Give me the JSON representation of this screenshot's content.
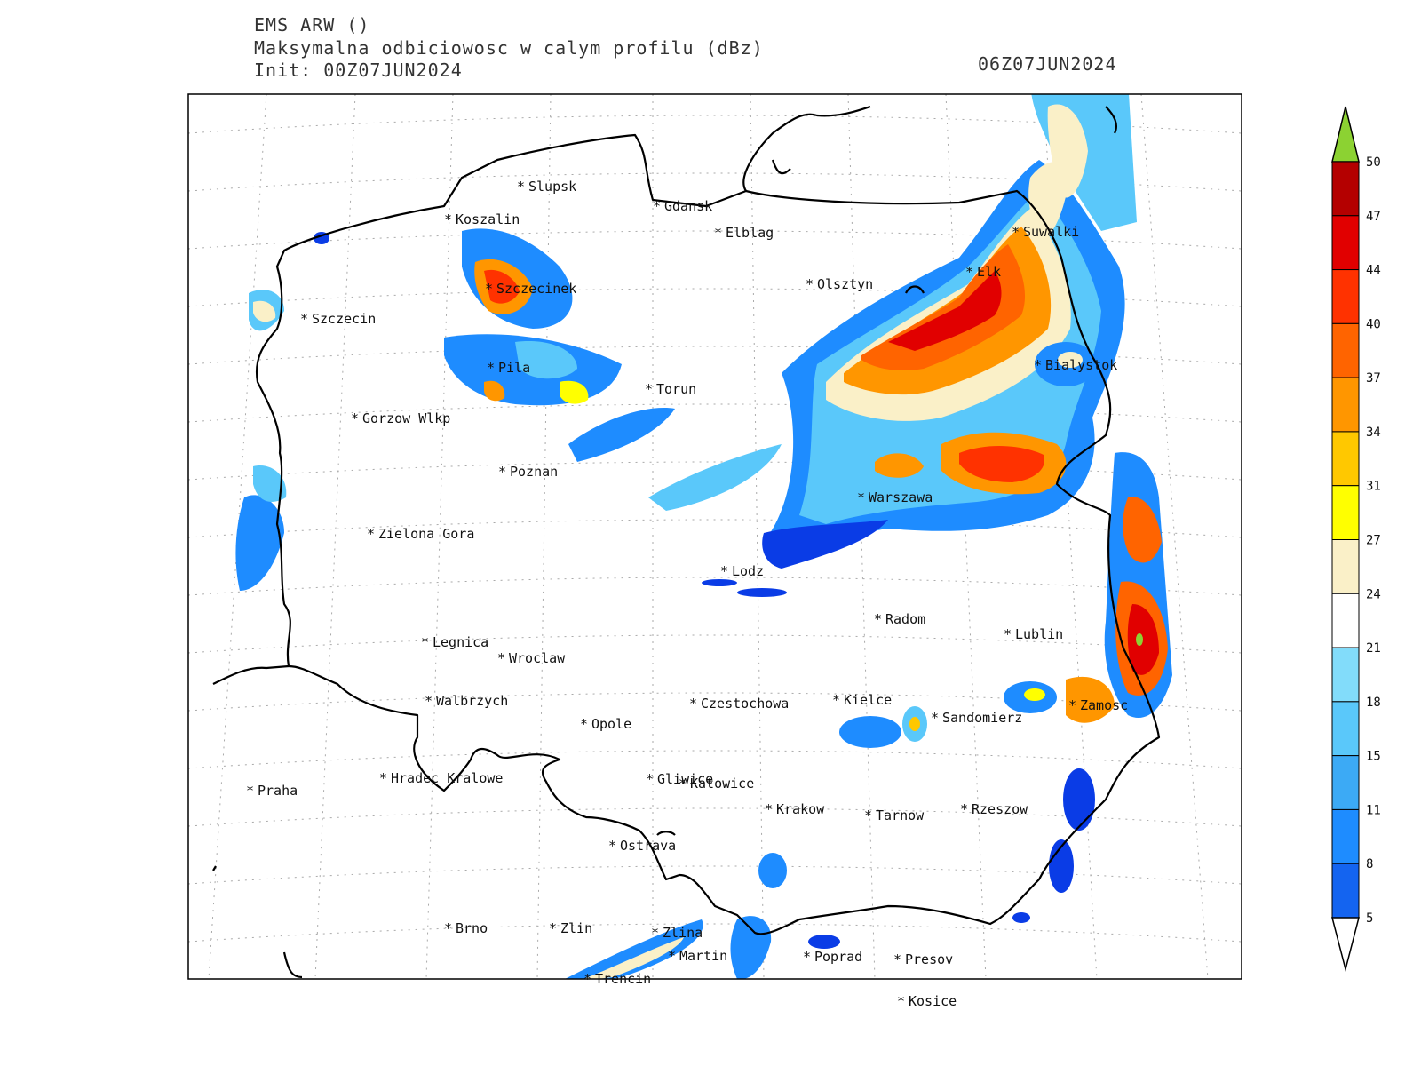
{
  "header": {
    "model": "EMS ARW ()",
    "field": "Maksymalna odbiciowosc w calym profilu (dBz)",
    "init": "Init: 00Z07JUN2024",
    "valid": "06Z07JUN2024"
  },
  "colorbar": {
    "levels": [
      "5",
      "8",
      "11",
      "15",
      "18",
      "21",
      "24",
      "27",
      "31",
      "34",
      "37",
      "40",
      "44",
      "47",
      "50"
    ],
    "colors": [
      "#0000c8",
      "#0a3ce6",
      "#1464f0",
      "#1e8cff",
      "#3caaf5",
      "#5ac8fa",
      "#82dcfa",
      "#ffffff",
      "#faf0c8",
      "#ffff00",
      "#ffc800",
      "#ff9600",
      "#ff6400",
      "#ff3200",
      "#e10000",
      "#b40000"
    ],
    "over_color": "#8cd232",
    "under_color": "#ffffff"
  },
  "cities": [
    {
      "name": "Slupsk"
    },
    {
      "name": "Koszalin"
    },
    {
      "name": "Gdansk"
    },
    {
      "name": "Elblag"
    },
    {
      "name": "Suwalki"
    },
    {
      "name": "Elk"
    },
    {
      "name": "Olsztyn"
    },
    {
      "name": "Szczecinek"
    },
    {
      "name": "Szczecin"
    },
    {
      "name": "Pila"
    },
    {
      "name": "Torun"
    },
    {
      "name": "Bialystok"
    },
    {
      "name": "Gorzow Wlkp"
    },
    {
      "name": "Poznan"
    },
    {
      "name": "Warszawa"
    },
    {
      "name": "Zielona Gora"
    },
    {
      "name": "Lodz"
    },
    {
      "name": "Radom"
    },
    {
      "name": "Lublin"
    },
    {
      "name": "Legnica"
    },
    {
      "name": "Wroclaw"
    },
    {
      "name": "Walbrzych"
    },
    {
      "name": "Czestochowa"
    },
    {
      "name": "Kielce"
    },
    {
      "name": "Zamosc"
    },
    {
      "name": "Sandomierz"
    },
    {
      "name": "Opole"
    },
    {
      "name": "Praha"
    },
    {
      "name": "Hradec Kralowe"
    },
    {
      "name": "Gliwice"
    },
    {
      "name": "Katowice"
    },
    {
      "name": "Krakow"
    },
    {
      "name": "Tarnow"
    },
    {
      "name": "Rzeszow"
    },
    {
      "name": "Ostrava"
    },
    {
      "name": "Brno"
    },
    {
      "name": "Zlin"
    },
    {
      "name": "Zlina"
    },
    {
      "name": "Martin"
    },
    {
      "name": "Poprad"
    },
    {
      "name": "Presov"
    },
    {
      "name": "Trencin"
    },
    {
      "name": "Kosice"
    }
  ]
}
